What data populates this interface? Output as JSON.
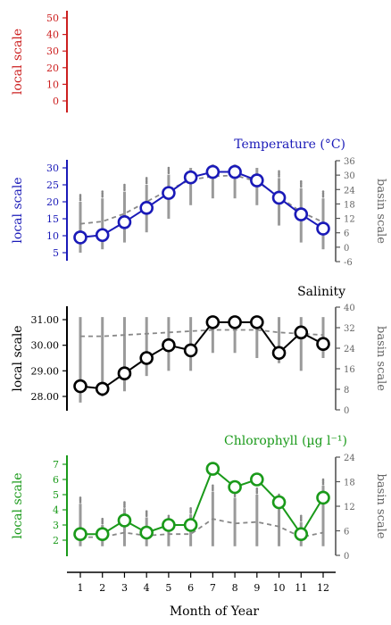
{
  "xlabel": "Month of Year",
  "months": [
    1,
    2,
    3,
    4,
    5,
    6,
    7,
    8,
    9,
    10,
    11,
    12
  ],
  "colors": {
    "red": "#cc1f1f",
    "blue": "#1a1ab8",
    "black": "#000000",
    "green": "#1a9a1a",
    "gray": "#888888",
    "graylight": "#9a9a9a"
  },
  "chart_data": [
    {
      "id": "panel-empty",
      "type": "line",
      "title": "",
      "color": "red",
      "ylabel": "local scale",
      "ylim": [
        0,
        50
      ],
      "yticks": [
        0,
        10,
        20,
        30,
        40,
        50
      ],
      "ytick_labels": [
        "0",
        "10",
        "20",
        "30",
        "40",
        "50"
      ]
    },
    {
      "id": "panel-temperature",
      "type": "line",
      "title": "Temperature (°C)",
      "color": "blue",
      "ylabel": "local scale",
      "ylabel_right": "basin scale",
      "ylim": [
        5,
        30
      ],
      "yticks": [
        5,
        10,
        15,
        20,
        25,
        30
      ],
      "ytick_labels": [
        "5",
        "10",
        "15",
        "20",
        "25",
        "30"
      ],
      "ylim_right": [
        -6,
        36
      ],
      "yticks_right": [
        -6,
        0,
        6,
        12,
        18,
        24,
        30,
        36
      ],
      "ytick_labels_right": [
        "-6",
        "0",
        "6",
        "12",
        "18",
        "24",
        "30",
        "36"
      ],
      "series": [
        {
          "role": "local",
          "values": [
            9.5,
            10.2,
            14.0,
            18.2,
            22.6,
            27.2,
            28.8,
            28.8,
            26.3,
            21.2,
            16.3,
            12.1
          ]
        },
        {
          "role": "basin_median",
          "values": [
            13.5,
            14.2,
            16.5,
            20.0,
            23.5,
            26.5,
            27.5,
            27.8,
            26.0,
            21.5,
            17.0,
            14.0
          ]
        }
      ],
      "basin_ranges": [
        [
          5,
          20
        ],
        [
          6,
          21
        ],
        [
          8,
          23
        ],
        [
          11,
          25
        ],
        [
          15,
          28
        ],
        [
          19,
          30
        ],
        [
          21,
          31
        ],
        [
          21,
          31
        ],
        [
          19,
          30
        ],
        [
          13,
          27
        ],
        [
          8,
          24
        ],
        [
          6,
          21
        ]
      ]
    },
    {
      "id": "panel-salinity",
      "type": "line",
      "title": "Salinity",
      "color": "black",
      "ylabel": "local scale",
      "ylabel_right": "basin scale",
      "ylim": [
        27.5,
        31.5
      ],
      "yticks": [
        28.0,
        29.0,
        30.0,
        31.0
      ],
      "ytick_labels": [
        "28.00",
        "29.00",
        "30.00",
        "31.00"
      ],
      "ylim_right": [
        0,
        40
      ],
      "yticks_right": [
        0,
        8,
        16,
        24,
        32,
        40
      ],
      "ytick_labels_right": [
        "0",
        "8",
        "16",
        "24",
        "32",
        "40"
      ],
      "series": [
        {
          "role": "local",
          "values": [
            28.4,
            28.3,
            28.9,
            29.5,
            30.0,
            29.8,
            30.9,
            30.9,
            30.9,
            29.7,
            30.5,
            30.05
          ]
        },
        {
          "role": "basin_median",
          "values": [
            30.35,
            30.35,
            30.4,
            30.45,
            30.5,
            30.55,
            30.6,
            30.6,
            30.6,
            30.5,
            30.45,
            30.4
          ]
        }
      ],
      "basin_ranges": [
        [
          27.3,
          31.1
        ],
        [
          28.0,
          31.1
        ],
        [
          28.2,
          31.1
        ],
        [
          28.8,
          31.1
        ],
        [
          29.0,
          31.1
        ],
        [
          29.0,
          31.1
        ],
        [
          29.7,
          31.1
        ],
        [
          29.7,
          31.1
        ],
        [
          29.5,
          31.1
        ],
        [
          29.3,
          31.1
        ],
        [
          29.0,
          31.1
        ],
        [
          29.5,
          31.1
        ]
      ]
    },
    {
      "id": "panel-chlorophyll",
      "type": "line",
      "title": "Chlorophyll (µg l⁻¹)",
      "color": "green",
      "ylabel": "local scale",
      "ylabel_right": "basin scale",
      "ylim": [
        1.5,
        7.5
      ],
      "yticks": [
        2,
        3,
        4,
        5,
        6,
        7
      ],
      "ytick_labels": [
        "2",
        "3",
        "4",
        "5",
        "6",
        "7"
      ],
      "ylim_right": [
        0,
        24
      ],
      "yticks_right": [
        0,
        6,
        12,
        18,
        24
      ],
      "ytick_labels_right": [
        "0",
        "6",
        "12",
        "18",
        "24"
      ],
      "series": [
        {
          "role": "local",
          "values": [
            2.4,
            2.4,
            3.3,
            2.5,
            3.0,
            3.0,
            6.7,
            5.5,
            6.0,
            4.5,
            2.4,
            4.8
          ]
        },
        {
          "role": "basin_median",
          "values": [
            2.2,
            2.2,
            2.5,
            2.3,
            2.4,
            2.4,
            3.4,
            3.1,
            3.2,
            2.9,
            2.2,
            2.5
          ]
        }
      ],
      "basin_ranges": [
        [
          1.6,
          4.4
        ],
        [
          1.6,
          3.0
        ],
        [
          1.6,
          4.1
        ],
        [
          1.6,
          3.5
        ],
        [
          1.6,
          3.2
        ],
        [
          1.6,
          3.7
        ],
        [
          1.6,
          5.2
        ],
        [
          1.6,
          4.8
        ],
        [
          1.6,
          5.0
        ],
        [
          1.6,
          4.6
        ],
        [
          1.6,
          3.2
        ],
        [
          1.6,
          5.6
        ]
      ]
    }
  ]
}
